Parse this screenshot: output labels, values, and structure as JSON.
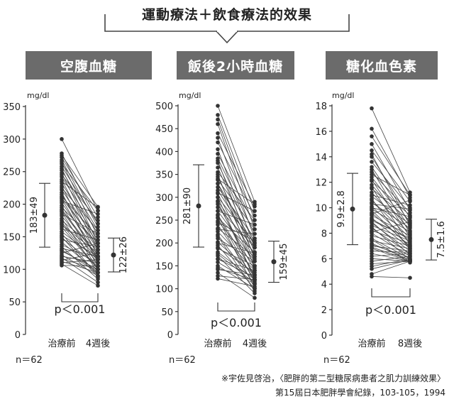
{
  "title": "運動療法＋飲食療法的效果",
  "footnote": {
    "line1": "※宇佐見啓治，〈肥胖的第二型糖尿病患者之肌力訓練效果〉",
    "line2": "第15屆日本肥胖學會紀錄，103-105，1994"
  },
  "chart_data": [
    {
      "type": "line",
      "header": "空腹血糖",
      "unit": "mg/dl",
      "ylim": [
        0,
        350
      ],
      "yticks": [
        0,
        50,
        100,
        150,
        200,
        250,
        300,
        350
      ],
      "categories": [
        "治療前",
        "4週後"
      ],
      "n_label": "n＝62",
      "p_label": "p＜0.001",
      "before_summary": {
        "label": "183±49",
        "mean": 183,
        "sd": 49
      },
      "after_summary": {
        "label": "122±26",
        "mean": 122,
        "sd": 26
      },
      "pairs": [
        [
          300,
          190
        ],
        [
          278,
          170
        ],
        [
          275,
          196
        ],
        [
          272,
          180
        ],
        [
          268,
          165
        ],
        [
          265,
          150
        ],
        [
          262,
          190
        ],
        [
          258,
          170
        ],
        [
          255,
          140
        ],
        [
          252,
          160
        ],
        [
          248,
          135
        ],
        [
          245,
          175
        ],
        [
          242,
          155
        ],
        [
          238,
          130
        ],
        [
          235,
          195
        ],
        [
          232,
          145
        ],
        [
          228,
          120
        ],
        [
          225,
          160
        ],
        [
          222,
          140
        ],
        [
          218,
          110
        ],
        [
          215,
          130
        ],
        [
          212,
          150
        ],
        [
          208,
          115
        ],
        [
          205,
          185
        ],
        [
          202,
          125
        ],
        [
          198,
          105
        ],
        [
          195,
          140
        ],
        [
          192,
          120
        ],
        [
          188,
          100
        ],
        [
          185,
          155
        ],
        [
          182,
          115
        ],
        [
          178,
          95
        ],
        [
          175,
          130
        ],
        [
          172,
          110
        ],
        [
          168,
          125
        ],
        [
          165,
          100
        ],
        [
          162,
          145
        ],
        [
          158,
          115
        ],
        [
          155,
          90
        ],
        [
          152,
          120
        ],
        [
          148,
          105
        ],
        [
          145,
          135
        ],
        [
          142,
          95
        ],
        [
          138,
          110
        ],
        [
          135,
          85
        ],
        [
          132,
          120
        ],
        [
          128,
          100
        ],
        [
          125,
          140
        ],
        [
          122,
          90
        ],
        [
          120,
          110
        ],
        [
          118,
          80
        ],
        [
          116,
          100
        ],
        [
          114,
          125
        ],
        [
          112,
          95
        ],
        [
          110,
          115
        ],
        [
          108,
          75
        ],
        [
          106,
          105
        ],
        [
          130,
          95
        ],
        [
          150,
          88
        ],
        [
          170,
          100
        ],
        [
          190,
          118
        ],
        [
          210,
          135
        ]
      ]
    },
    {
      "type": "line",
      "header": "飯後2小時血糖",
      "unit": "mg/dl",
      "ylim": [
        0,
        500
      ],
      "yticks": [
        0,
        50,
        100,
        150,
        200,
        250,
        300,
        350,
        400,
        450,
        500
      ],
      "categories": [
        "治療前",
        "4週後"
      ],
      "n_label": "n＝62",
      "p_label": "p＜0.001",
      "before_summary": {
        "label": "281±90",
        "mean": 281,
        "sd": 90
      },
      "after_summary": {
        "label": "159±45",
        "mean": 159,
        "sd": 45
      },
      "pairs": [
        [
          500,
          290
        ],
        [
          480,
          270
        ],
        [
          470,
          250
        ],
        [
          460,
          230
        ],
        [
          440,
          280
        ],
        [
          430,
          210
        ],
        [
          420,
          260
        ],
        [
          405,
          190
        ],
        [
          395,
          240
        ],
        [
          385,
          220
        ],
        [
          375,
          200
        ],
        [
          365,
          180
        ],
        [
          355,
          250
        ],
        [
          345,
          170
        ],
        [
          338,
          230
        ],
        [
          330,
          160
        ],
        [
          322,
          210
        ],
        [
          315,
          190
        ],
        [
          308,
          150
        ],
        [
          300,
          200
        ],
        [
          292,
          175
        ],
        [
          285,
          140
        ],
        [
          278,
          190
        ],
        [
          270,
          160
        ],
        [
          262,
          130
        ],
        [
          255,
          180
        ],
        [
          248,
          150
        ],
        [
          240,
          120
        ],
        [
          232,
          170
        ],
        [
          225,
          140
        ],
        [
          218,
          110
        ],
        [
          210,
          160
        ],
        [
          202,
          130
        ],
        [
          195,
          100
        ],
        [
          188,
          150
        ],
        [
          180,
          120
        ],
        [
          172,
          90
        ],
        [
          165,
          140
        ],
        [
          158,
          110
        ],
        [
          150,
          100
        ],
        [
          142,
          130
        ],
        [
          135,
          80
        ],
        [
          128,
          120
        ],
        [
          122,
          105
        ],
        [
          310,
          270
        ],
        [
          340,
          285
        ],
        [
          270,
          240
        ],
        [
          230,
          220
        ],
        [
          300,
          120
        ],
        [
          260,
          115
        ],
        [
          215,
          95
        ],
        [
          190,
          135
        ],
        [
          350,
          145
        ],
        [
          380,
          165
        ],
        [
          245,
          205
        ],
        [
          200,
          178
        ],
        [
          165,
          125
        ],
        [
          145,
          118
        ],
        [
          330,
          195
        ],
        [
          290,
          125
        ],
        [
          255,
          102
        ],
        [
          176,
          112
        ]
      ]
    },
    {
      "type": "line",
      "header": "糖化血色素",
      "unit": "mg/dl",
      "ylim": [
        0,
        18
      ],
      "yticks": [
        0,
        2,
        4,
        6,
        8,
        10,
        12,
        14,
        16,
        18
      ],
      "categories": [
        "治療前",
        "8週後"
      ],
      "n_label": "n＝62",
      "p_label": "p＜0.001",
      "before_summary": {
        "label": "9.9±2.8",
        "mean": 9.9,
        "sd": 2.8
      },
      "after_summary": {
        "label": "7.5±1.6",
        "mean": 7.5,
        "sd": 1.6
      },
      "pairs": [
        [
          17.8,
          11.2
        ],
        [
          16.2,
          10.8
        ],
        [
          15.6,
          11.0
        ],
        [
          15.0,
          9.8
        ],
        [
          14.5,
          10.5
        ],
        [
          14.0,
          9.2
        ],
        [
          13.6,
          10.0
        ],
        [
          13.2,
          8.8
        ],
        [
          12.8,
          9.6
        ],
        [
          12.4,
          8.5
        ],
        [
          12.1,
          9.4
        ],
        [
          11.8,
          8.2
        ],
        [
          11.5,
          9.0
        ],
        [
          11.2,
          7.9
        ],
        [
          10.9,
          8.7
        ],
        [
          10.6,
          7.6
        ],
        [
          10.4,
          8.4
        ],
        [
          10.1,
          7.3
        ],
        [
          9.9,
          8.1
        ],
        [
          9.6,
          7.0
        ],
        [
          9.4,
          7.8
        ],
        [
          9.2,
          6.8
        ],
        [
          9.0,
          7.6
        ],
        [
          8.8,
          6.6
        ],
        [
          8.6,
          7.4
        ],
        [
          8.4,
          6.4
        ],
        [
          8.2,
          7.2
        ],
        [
          8.0,
          6.2
        ],
        [
          7.8,
          7.0
        ],
        [
          7.6,
          6.0
        ],
        [
          7.4,
          6.8
        ],
        [
          7.2,
          5.9
        ],
        [
          7.0,
          6.6
        ],
        [
          6.8,
          5.8
        ],
        [
          6.6,
          6.5
        ],
        [
          6.4,
          5.8
        ],
        [
          6.2,
          6.4
        ],
        [
          6.0,
          5.8
        ],
        [
          5.8,
          6.2
        ],
        [
          5.6,
          5.8
        ],
        [
          5.4,
          6.0
        ],
        [
          5.2,
          5.9
        ],
        [
          4.8,
          5.8
        ],
        [
          4.6,
          4.5
        ],
        [
          11.0,
          10.2
        ],
        [
          12.6,
          11.0
        ],
        [
          10.0,
          9.3
        ],
        [
          9.8,
          6.9
        ],
        [
          8.9,
          6.3
        ],
        [
          13.0,
          8.0
        ],
        [
          14.2,
          8.6
        ],
        [
          10.7,
          6.7
        ],
        [
          9.5,
          10.6
        ],
        [
          8.1,
          8.9
        ],
        [
          7.5,
          5.7
        ],
        [
          6.9,
          5.9
        ],
        [
          11.6,
          7.1
        ],
        [
          12.2,
          7.7
        ],
        [
          10.3,
          9.9
        ],
        [
          9.1,
          7.5
        ],
        [
          8.5,
          5.9
        ],
        [
          7.1,
          6.1
        ]
      ]
    }
  ]
}
